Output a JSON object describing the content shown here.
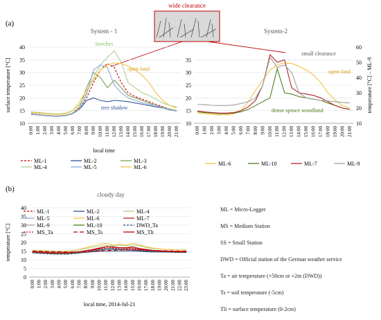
{
  "panel_labels": {
    "a": "(a)",
    "b": "(b)"
  },
  "callouts": {
    "wide": "wide clearance",
    "small": "small clearance"
  },
  "definitions": [
    "ML = Micro-Logger",
    "MS = Medium Station",
    "SS = Small Station",
    "DWD = Official station of the German weather service",
    "Ta = air temperature (+50cm or +2m (DWD))",
    "Ts = soil temperature (-5cm)",
    "Tli = surface temperature (0-2cm)"
  ],
  "colors": {
    "ML-1": "#c00000",
    "ML-2": "#2e5597",
    "ML-3": "#7f9f4f",
    "ML-4": "#a9d18e",
    "ML-5": "#8eaadb",
    "ML-6": "#f4c242",
    "ML-7": "#b22222",
    "ML-9": "#9e9e9e",
    "ML-10": "#4f7f1f",
    "MS_Ta": "#c00000",
    "MS_Ts": "#c00000",
    "MS_Tli": "#c00000",
    "DWD_Ta": "#1f3f9f"
  },
  "chart_data": [
    {
      "type": "line",
      "title": "System - 1",
      "xlabel": "local time",
      "ylabel": "surface temperature [°C]",
      "ylim": [
        10,
        40
      ],
      "yticks": [
        10,
        15,
        20,
        25,
        30,
        35,
        40
      ],
      "x": [
        "0:00",
        "1:00",
        "2:00",
        "3:00",
        "4:00",
        "5:00",
        "6:00",
        "7:00",
        "8:00",
        "9:00",
        "10:00",
        "11:00",
        "12:00",
        "13:00",
        "14:00",
        "15:00",
        "16:00",
        "17:00",
        "18:00",
        "19:00",
        "20:00",
        "21:00"
      ],
      "annotations": [
        "beeches",
        "open-land",
        "tree shadow"
      ],
      "series": [
        {
          "name": "ML-1",
          "values": [
            13.8,
            13.5,
            13.2,
            13.0,
            12.9,
            13.2,
            14.0,
            16.0,
            20.0,
            26.0,
            31.0,
            33.5,
            32.0,
            26.0,
            22.0,
            20.5,
            19.5,
            18.5,
            17.5,
            16.5,
            15.5,
            15.0
          ]
        },
        {
          "name": "ML-2",
          "values": [
            13.5,
            13.3,
            13.0,
            12.8,
            12.8,
            13.0,
            13.8,
            15.5,
            19.0,
            20.0,
            19.0,
            18.5,
            19.0,
            18.8,
            18.5,
            18.0,
            17.5,
            17.0,
            16.5,
            16.0,
            15.3,
            15.0
          ]
        },
        {
          "name": "ML-3",
          "values": [
            13.6,
            13.4,
            13.1,
            12.9,
            12.9,
            13.1,
            14.0,
            16.5,
            24.0,
            30.0,
            28.0,
            24.0,
            27.0,
            24.0,
            21.0,
            20.0,
            19.0,
            18.0,
            17.0,
            16.3,
            15.5,
            15.0
          ]
        },
        {
          "name": "ML-4",
          "values": [
            14.5,
            14.3,
            14.0,
            13.8,
            13.7,
            14.0,
            15.0,
            17.5,
            22.0,
            28.0,
            33.0,
            36.0,
            38.5,
            34.0,
            26.0,
            24.0,
            22.0,
            21.0,
            19.5,
            18.0,
            17.0,
            16.5
          ]
        },
        {
          "name": "ML-5",
          "values": [
            13.5,
            13.3,
            13.0,
            12.8,
            12.7,
            13.0,
            13.8,
            15.5,
            21.5,
            31.0,
            33.0,
            32.0,
            25.0,
            22.0,
            20.0,
            19.0,
            18.0,
            17.5,
            17.0,
            16.0,
            15.2,
            14.8
          ]
        },
        {
          "name": "ML-6",
          "values": [
            14.3,
            14.0,
            13.8,
            13.6,
            13.5,
            13.8,
            15.0,
            18.5,
            23.0,
            27.0,
            31.0,
            33.0,
            33.8,
            33.5,
            32.5,
            31.0,
            29.0,
            26.0,
            22.0,
            19.0,
            17.0,
            16.0
          ]
        }
      ]
    },
    {
      "type": "line",
      "title": "System-2",
      "xlabel": "",
      "ylabel": "temperature [°C] – ML-9",
      "ylim": [
        10,
        40
      ],
      "yticks": [
        10,
        15,
        20,
        25,
        30,
        35
      ],
      "y2ticks": [
        10,
        20,
        30,
        40,
        50,
        60
      ],
      "x": [
        "0:00",
        "1:00",
        "2:00",
        "3:00",
        "4:00",
        "5:00",
        "6:00",
        "7:00",
        "8:00",
        "9:00",
        "10:00",
        "11:00",
        "12:00",
        "13:00",
        "14:00",
        "15:00",
        "16:00",
        "17:00",
        "18:00",
        "19:00",
        "20:00",
        "21:00"
      ],
      "annotations": [
        "open-land",
        "dense spruce woodland"
      ],
      "series": [
        {
          "name": "ML-6",
          "values": [
            14.0,
            13.8,
            13.5,
            13.3,
            13.3,
            13.7,
            15.0,
            18.5,
            23.0,
            27.0,
            31.0,
            33.0,
            33.8,
            33.5,
            32.5,
            31.0,
            29.0,
            26.0,
            22.0,
            19.0,
            17.0,
            16.0
          ]
        },
        {
          "name": "ML-10",
          "values": [
            14.5,
            14.2,
            14.0,
            13.8,
            13.8,
            14.0,
            14.5,
            15.5,
            17.0,
            18.5,
            20.0,
            31.5,
            22.0,
            21.5,
            20.5,
            20.0,
            19.5,
            19.0,
            18.0,
            17.0,
            16.0,
            15.5
          ]
        },
        {
          "name": "ML-7",
          "values": [
            14.8,
            14.5,
            14.2,
            14.0,
            14.0,
            14.2,
            15.0,
            16.5,
            19.0,
            25.0,
            37.0,
            34.0,
            35.0,
            24.0,
            22.0,
            21.5,
            21.0,
            20.0,
            18.5,
            17.0,
            16.0,
            15.5
          ]
        },
        {
          "name": "ML-9",
          "values": [
            17.5,
            17.3,
            17.1,
            17.0,
            17.0,
            17.2,
            17.8,
            18.5,
            20.0,
            25.0,
            36.0,
            32.0,
            33.0,
            30.0,
            22.0,
            20.0,
            19.5,
            19.0,
            18.8,
            18.5,
            18.2,
            18.0
          ]
        }
      ]
    },
    {
      "type": "line",
      "title": "cloudy day",
      "xlabel": "local time, 2014-Jul-21",
      "ylabel": "temperature [°C]",
      "ylim": [
        0,
        40
      ],
      "yticks": [
        0,
        5,
        10,
        15,
        20,
        25,
        30,
        35,
        40
      ],
      "x": [
        "0:00",
        "1:00",
        "2:00",
        "3:00",
        "4:00",
        "5:00",
        "6:00",
        "7:00",
        "8:00",
        "9:00",
        "10:00",
        "11:00",
        "12:00",
        "13:00",
        "14:00",
        "15:00",
        "16:00",
        "17:00",
        "18:00",
        "19:00",
        "20:00",
        "21:00",
        "22:00",
        "23:00"
      ],
      "series": [
        {
          "name": "ML-1",
          "values": [
            14.5,
            14.3,
            14.2,
            14.0,
            14.0,
            14.0,
            14.2,
            14.5,
            15.0,
            15.5,
            16.0,
            16.5,
            16.5,
            16.0,
            16.0,
            15.8,
            15.5,
            15.2,
            15.0,
            15.0,
            14.8,
            14.8,
            14.7,
            14.7
          ]
        },
        {
          "name": "ML-2",
          "values": [
            14.2,
            14.0,
            13.9,
            13.8,
            13.8,
            13.8,
            13.9,
            14.0,
            14.3,
            14.6,
            14.8,
            15.0,
            15.0,
            15.0,
            15.0,
            15.0,
            14.8,
            14.6,
            14.5,
            14.5,
            14.4,
            14.4,
            14.3,
            14.3
          ]
        },
        {
          "name": "ML-4",
          "values": [
            15.5,
            15.3,
            15.2,
            15.0,
            15.0,
            15.0,
            15.3,
            15.8,
            16.5,
            17.2,
            17.8,
            18.3,
            18.0,
            18.5,
            18.0,
            18.5,
            18.0,
            17.0,
            16.5,
            16.2,
            16.0,
            15.8,
            15.7,
            15.7
          ]
        },
        {
          "name": "ML-5",
          "values": [
            14.8,
            14.6,
            14.5,
            14.3,
            14.3,
            14.3,
            14.5,
            14.8,
            15.3,
            15.8,
            16.2,
            16.5,
            16.5,
            16.4,
            16.2,
            16.0,
            15.8,
            15.5,
            15.2,
            15.0,
            14.9,
            14.9,
            14.8,
            14.8
          ]
        },
        {
          "name": "ML-6",
          "values": [
            15.3,
            15.1,
            15.0,
            14.8,
            14.8,
            14.8,
            15.2,
            16.0,
            17.0,
            18.0,
            18.8,
            19.5,
            18.5,
            19.0,
            18.5,
            19.5,
            18.5,
            17.5,
            16.8,
            16.3,
            16.0,
            15.8,
            15.6,
            15.5
          ]
        },
        {
          "name": "ML-7",
          "values": [
            14.6,
            14.4,
            14.3,
            14.1,
            14.1,
            14.1,
            14.3,
            14.6,
            15.2,
            15.8,
            16.5,
            17.5,
            17.5,
            17.0,
            17.0,
            17.5,
            16.5,
            16.0,
            15.5,
            15.2,
            15.0,
            14.9,
            14.8,
            14.8
          ]
        },
        {
          "name": "ML-9",
          "values": [
            14.3,
            14.1,
            14.0,
            13.8,
            13.8,
            13.8,
            14.0,
            14.3,
            14.8,
            15.3,
            15.8,
            16.2,
            16.2,
            16.0,
            15.8,
            15.8,
            15.5,
            15.2,
            15.0,
            14.8,
            14.6,
            14.6,
            14.5,
            14.5
          ]
        },
        {
          "name": "ML-10",
          "values": [
            14.0,
            13.8,
            13.7,
            13.5,
            13.5,
            13.5,
            13.7,
            14.0,
            14.5,
            15.0,
            15.5,
            16.0,
            16.0,
            15.8,
            15.6,
            15.6,
            15.3,
            15.0,
            14.8,
            14.6,
            14.5,
            14.4,
            14.3,
            14.3
          ]
        },
        {
          "name": "DWD_Ta",
          "values": [
            14.0,
            13.7,
            13.5,
            13.3,
            13.2,
            13.2,
            13.4,
            13.8,
            14.4,
            15.0,
            15.5,
            16.0,
            16.2,
            16.0,
            15.8,
            15.5,
            15.2,
            15.0,
            14.8,
            14.6,
            14.4,
            14.3,
            14.2,
            14.2
          ]
        },
        {
          "name": "MS_Ta",
          "values": [
            14.4,
            14.2,
            14.0,
            13.8,
            13.8,
            13.8,
            14.0,
            14.4,
            15.0,
            15.6,
            16.2,
            16.8,
            16.8,
            16.5,
            16.3,
            16.2,
            15.8,
            15.4,
            15.1,
            14.9,
            14.7,
            14.6,
            14.5,
            14.5
          ]
        },
        {
          "name": "MS_Ts",
          "values": [
            15.0,
            14.9,
            14.8,
            14.7,
            14.6,
            14.5,
            14.5,
            14.5,
            14.6,
            14.8,
            15.0,
            15.3,
            15.5,
            15.6,
            15.7,
            15.7,
            15.6,
            15.5,
            15.4,
            15.3,
            15.2,
            15.1,
            15.0,
            15.0
          ]
        },
        {
          "name": "MS_Tli",
          "values": [
            14.6,
            14.4,
            14.2,
            14.0,
            14.0,
            14.0,
            14.2,
            14.6,
            15.3,
            16.0,
            16.8,
            17.5,
            17.3,
            17.0,
            16.8,
            16.8,
            16.2,
            15.8,
            15.4,
            15.1,
            14.9,
            14.8,
            14.7,
            14.7
          ]
        }
      ]
    }
  ]
}
